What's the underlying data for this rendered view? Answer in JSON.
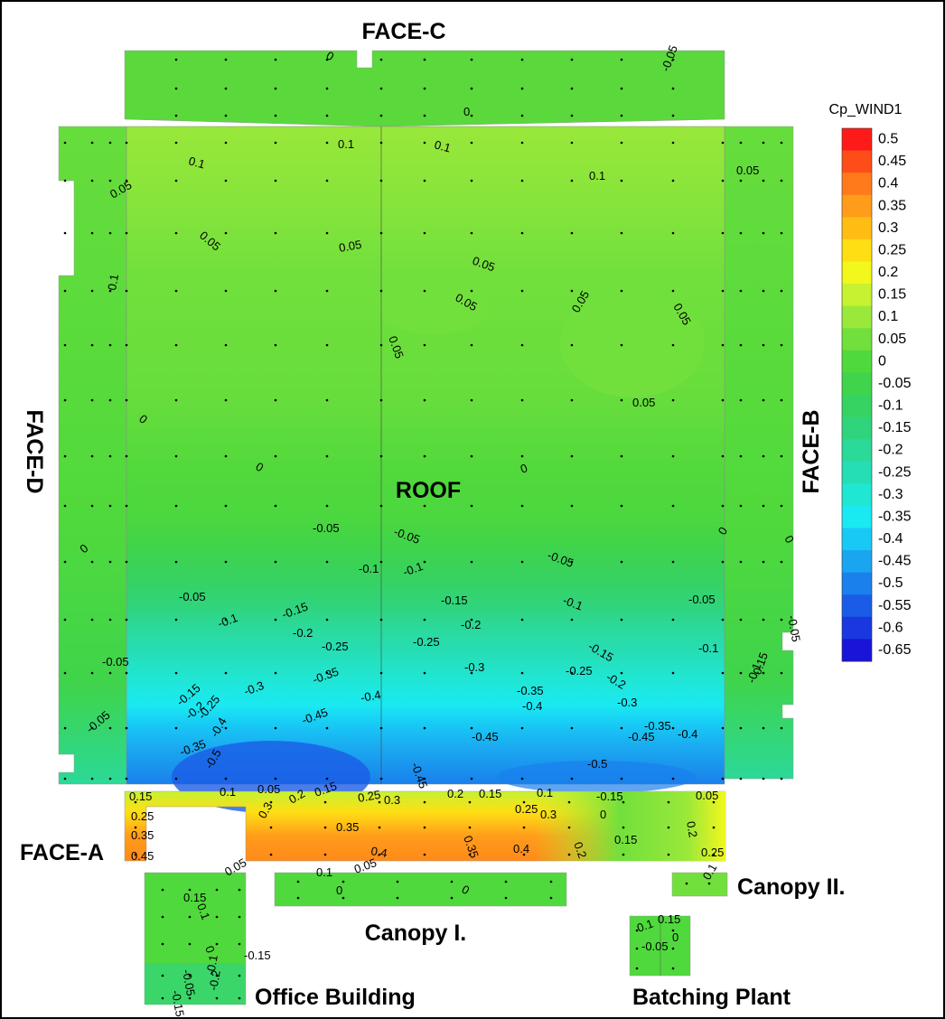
{
  "labels": {
    "face_c": "FACE-C",
    "face_d": "FACE-D",
    "face_b": "FACE-B",
    "face_a": "FACE-A",
    "roof": "ROOF",
    "canopy_1": "Canopy I.",
    "canopy_2": "Canopy II.",
    "office": "Office Building",
    "batching": "Batching Plant"
  },
  "legend": {
    "title": "Cp_WIND1",
    "levels": [
      {
        "value": 0.5,
        "color": "#ff1a1a"
      },
      {
        "value": 0.45,
        "color": "#ff4d1a"
      },
      {
        "value": 0.4,
        "color": "#ff7a1a"
      },
      {
        "value": 0.35,
        "color": "#ff9c1a"
      },
      {
        "value": 0.3,
        "color": "#ffbd14"
      },
      {
        "value": 0.25,
        "color": "#ffde14"
      },
      {
        "value": 0.2,
        "color": "#f2f71c"
      },
      {
        "value": 0.15,
        "color": "#c6f232"
      },
      {
        "value": 0.1,
        "color": "#9ae83a"
      },
      {
        "value": 0.05,
        "color": "#72e03c"
      },
      {
        "value": 0,
        "color": "#50d93c"
      },
      {
        "value": -0.05,
        "color": "#3fd44c"
      },
      {
        "value": -0.1,
        "color": "#36d262"
      },
      {
        "value": -0.15,
        "color": "#30d47c"
      },
      {
        "value": -0.2,
        "color": "#2bd998"
      },
      {
        "value": -0.25,
        "color": "#26deb6"
      },
      {
        "value": -0.3,
        "color": "#20e6d4"
      },
      {
        "value": -0.35,
        "color": "#1ae9f2"
      },
      {
        "value": -0.4,
        "color": "#18c9f5"
      },
      {
        "value": -0.45,
        "color": "#1aa5f0"
      },
      {
        "value": -0.5,
        "color": "#1a80ec"
      },
      {
        "value": -0.55,
        "color": "#1a5ce6"
      },
      {
        "value": -0.6,
        "color": "#1a38e0"
      },
      {
        "value": -0.65,
        "color": "#1a14d8"
      }
    ]
  },
  "contour_labels": [
    0,
    0,
    -0.05,
    0.1,
    0.1,
    0.1,
    0.1,
    0.05,
    0.05,
    0.05,
    0.05,
    0.05,
    0.05,
    0.05,
    0.05,
    0.05,
    0.05,
    0.1,
    0,
    0,
    0,
    0,
    0,
    0,
    -0.05,
    -0.05,
    -0.05,
    -0.1,
    -0.1,
    -0.05,
    -0.15,
    -0.1,
    -0.05,
    -0.05,
    -0.1,
    -0.15,
    -0.2,
    -0.2,
    -0.25,
    -0.25,
    -0.15,
    -0.1,
    -0.05,
    -0.3,
    -0.25,
    -0.2,
    -0.35,
    -0.3,
    -0.4,
    -0.35,
    -0.4,
    -0.3,
    -0.15,
    -0.2,
    -0.25,
    -0.45,
    -0.45,
    -0.45,
    -0.35,
    -0.4,
    -0.5,
    -0.4,
    -0.35,
    -0.5,
    -0.45,
    -0.05,
    -0.1,
    -0.15,
    0.15,
    0.1,
    0.05,
    0.2,
    0.15,
    0.25,
    0.3,
    0.2,
    0.15,
    0.25,
    0.3,
    0.1,
    -0.15,
    0,
    0.05,
    0.25,
    0.35,
    0.45,
    0.3,
    0.35,
    0.35,
    0.4,
    0.4,
    0.15,
    0.25,
    0.2,
    0.2,
    0.1,
    0.05,
    0,
    0,
    0.1,
    0.05,
    0.15,
    0.1,
    0,
    -0.15,
    -0.05,
    -0.1,
    -0.15,
    -0.2,
    0.1,
    0.15,
    0,
    -0.05
  ]
}
